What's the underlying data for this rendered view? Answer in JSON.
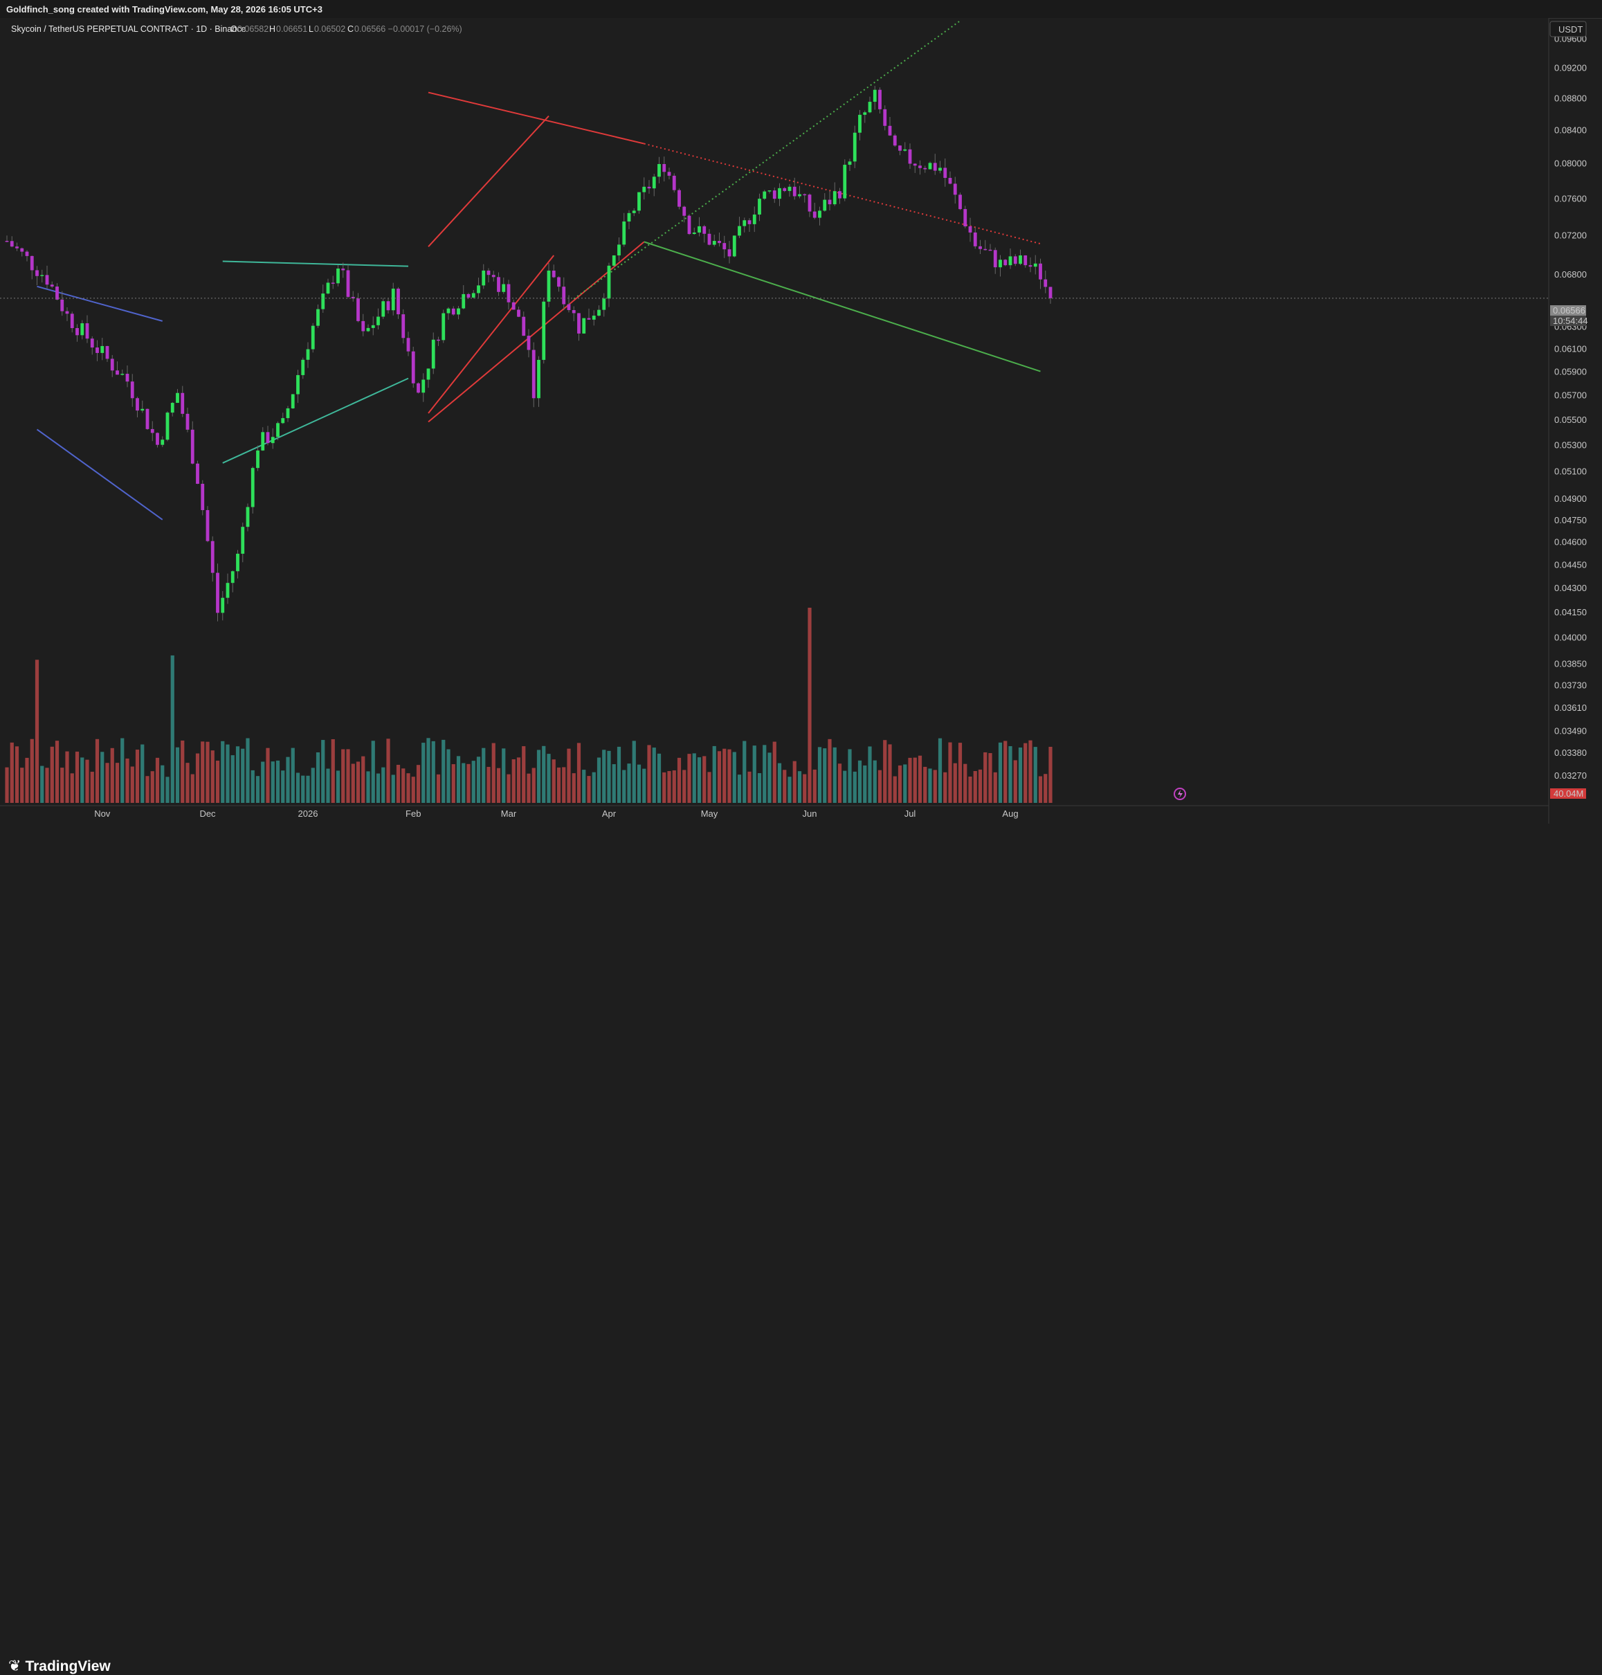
{
  "header": {
    "attribution": "Goldfinch_song created with TradingView.com, May 28, 2026 16:05 UTC+3"
  },
  "legend": {
    "symbol": "Skycoin / TetherUS PERPETUAL CONTRACT · 1D · Binance",
    "o_label": "O",
    "o_value": "0.06582",
    "h_label": "H",
    "h_value": "0.06651",
    "l_label": "L",
    "l_value": "0.06502",
    "c_label": "C",
    "c_value": "0.06566 −0.00017 (−0.26%)"
  },
  "price_axis": {
    "currency": "USDT",
    "last_price": "0.06566",
    "countdown": "10:54:44",
    "volume_label": "40.04M",
    "ticks": [
      "0.09600",
      "0.09200",
      "0.08800",
      "0.08400",
      "0.08000",
      "0.07600",
      "0.07200",
      "0.06800",
      "0.06300",
      "0.06100",
      "0.05900",
      "0.05700",
      "0.05500",
      "0.05300",
      "0.05100",
      "0.04900",
      "0.04750",
      "0.04600",
      "0.04450",
      "0.04300",
      "0.04150",
      "0.04000",
      "0.03850",
      "0.03730",
      "0.03610",
      "0.03490",
      "0.03380",
      "0.03270"
    ]
  },
  "footer": {
    "brand": "TradingView"
  },
  "colors": {
    "background": "#1e1e1e",
    "up_candle": "#2ee05a",
    "down_candle": "#b536c9",
    "vol_up": "#2f7a74",
    "vol_down": "#9c3e3e",
    "trend_red": "#e03a3a",
    "trend_green": "#4cae4c",
    "trend_teal": "#3fb89a",
    "trend_blue": "#5064cc"
  },
  "chart_data": {
    "type": "candlestick",
    "title": "Skycoin / TetherUS PERPETUAL CONTRACT · 1D · Binance",
    "x_labels": [
      "Nov",
      "Dec",
      "2026",
      "Feb",
      "Mar",
      "Apr",
      "May",
      "Jun",
      "Jul",
      "Aug"
    ],
    "y_scale": "log",
    "ylim": [
      0.0322,
      0.0985
    ],
    "last_price": 0.06566,
    "anchors": [
      {
        "day": 0,
        "price": 0.0714
      },
      {
        "day": 8,
        "price": 0.0676
      },
      {
        "day": 12,
        "price": 0.064
      },
      {
        "day": 20,
        "price": 0.06
      },
      {
        "day": 24,
        "price": 0.0582
      },
      {
        "day": 30,
        "price": 0.053
      },
      {
        "day": 34,
        "price": 0.0572
      },
      {
        "day": 38,
        "price": 0.0505
      },
      {
        "day": 42,
        "price": 0.0415
      },
      {
        "day": 46,
        "price": 0.045
      },
      {
        "day": 50,
        "price": 0.053
      },
      {
        "day": 55,
        "price": 0.0545
      },
      {
        "day": 61,
        "price": 0.063
      },
      {
        "day": 66,
        "price": 0.069
      },
      {
        "day": 71,
        "price": 0.062
      },
      {
        "day": 77,
        "price": 0.066
      },
      {
        "day": 82,
        "price": 0.057
      },
      {
        "day": 87,
        "price": 0.064
      },
      {
        "day": 92,
        "price": 0.0665
      },
      {
        "day": 96,
        "price": 0.068
      },
      {
        "day": 100,
        "price": 0.066
      },
      {
        "day": 104,
        "price": 0.061
      },
      {
        "day": 105,
        "price": 0.056
      },
      {
        "day": 108,
        "price": 0.069
      },
      {
        "day": 114,
        "price": 0.063
      },
      {
        "day": 118,
        "price": 0.065
      },
      {
        "day": 124,
        "price": 0.074
      },
      {
        "day": 131,
        "price": 0.08
      },
      {
        "day": 136,
        "price": 0.073
      },
      {
        "day": 144,
        "price": 0.07
      },
      {
        "day": 150,
        "price": 0.076
      },
      {
        "day": 156,
        "price": 0.0775
      },
      {
        "day": 161,
        "price": 0.074
      },
      {
        "day": 166,
        "price": 0.077
      },
      {
        "day": 170,
        "price": 0.085
      },
      {
        "day": 173,
        "price": 0.088
      },
      {
        "day": 177,
        "price": 0.081
      },
      {
        "day": 182,
        "price": 0.08
      },
      {
        "day": 186,
        "price": 0.0795
      },
      {
        "day": 189,
        "price": 0.076
      },
      {
        "day": 193,
        "price": 0.071
      },
      {
        "day": 198,
        "price": 0.069
      },
      {
        "day": 203,
        "price": 0.0692
      },
      {
        "day": 206,
        "price": 0.068
      },
      {
        "day": 208,
        "price": 0.06566
      }
    ],
    "volume_max": 0.09,
    "volume_spikes": [
      {
        "day": 6,
        "value": 0.066
      },
      {
        "day": 33,
        "value": 0.068
      },
      {
        "day": 160,
        "value": 0.09
      }
    ],
    "trendlines": [
      {
        "name": "descending-channel-top",
        "color": "blue"
      },
      {
        "name": "descending-channel-bottom",
        "color": "blue"
      },
      {
        "name": "ascending-triangle-top",
        "color": "teal"
      },
      {
        "name": "ascending-triangle-bottom",
        "color": "teal"
      },
      {
        "name": "rising-channel-top",
        "color": "red"
      },
      {
        "name": "rising-channel-bottom",
        "color": "red"
      },
      {
        "name": "long-resistance",
        "color": "red",
        "style": "dotted"
      },
      {
        "name": "long-support",
        "color": "green"
      },
      {
        "name": "projected-breakout",
        "color": "green",
        "style": "dotted"
      }
    ]
  }
}
